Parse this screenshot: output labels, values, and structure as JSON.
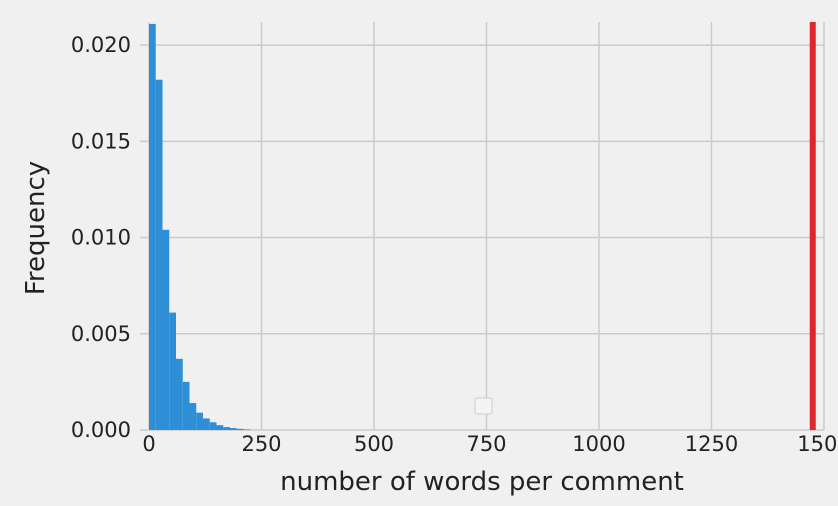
{
  "chart_data": {
    "type": "bar",
    "title": "",
    "xlabel": "number of words per comment",
    "ylabel": "Frequency",
    "xlim": [
      -20,
      1500
    ],
    "ylim": [
      0,
      0.0212
    ],
    "grid": true,
    "x_ticks": [
      0,
      250,
      500,
      750,
      1000,
      1250,
      1500
    ],
    "y_ticks": [
      0.0,
      0.005,
      0.01,
      0.015,
      0.02
    ],
    "x_tick_labels": [
      "0",
      "250",
      "500",
      "750",
      "1000",
      "1250",
      "1500"
    ],
    "y_tick_labels": [
      "0.000",
      "0.005",
      "0.010",
      "0.015",
      "0.020"
    ],
    "bin_width": 15,
    "bins": [
      {
        "x0": 0,
        "x1": 15,
        "value": 0.0211
      },
      {
        "x0": 15,
        "x1": 30,
        "value": 0.0182
      },
      {
        "x0": 30,
        "x1": 45,
        "value": 0.0104
      },
      {
        "x0": 45,
        "x1": 60,
        "value": 0.0061
      },
      {
        "x0": 60,
        "x1": 75,
        "value": 0.0037
      },
      {
        "x0": 75,
        "x1": 90,
        "value": 0.0025
      },
      {
        "x0": 90,
        "x1": 105,
        "value": 0.0014
      },
      {
        "x0": 105,
        "x1": 120,
        "value": 0.0009
      },
      {
        "x0": 120,
        "x1": 135,
        "value": 0.0006
      },
      {
        "x0": 135,
        "x1": 150,
        "value": 0.0004
      },
      {
        "x0": 150,
        "x1": 165,
        "value": 0.00025
      },
      {
        "x0": 165,
        "x1": 180,
        "value": 0.00015
      },
      {
        "x0": 180,
        "x1": 195,
        "value": 0.0001
      },
      {
        "x0": 195,
        "x1": 210,
        "value": 6e-05
      },
      {
        "x0": 210,
        "x1": 225,
        "value": 3e-05
      }
    ],
    "vline": {
      "x": 1475,
      "color": "#e0262a"
    },
    "colors": {
      "bars": "#2e8fd6",
      "grid": "#cbcbcb",
      "background": "#f0f0f0"
    },
    "legend": {
      "placement": "lower center",
      "entries": []
    }
  }
}
